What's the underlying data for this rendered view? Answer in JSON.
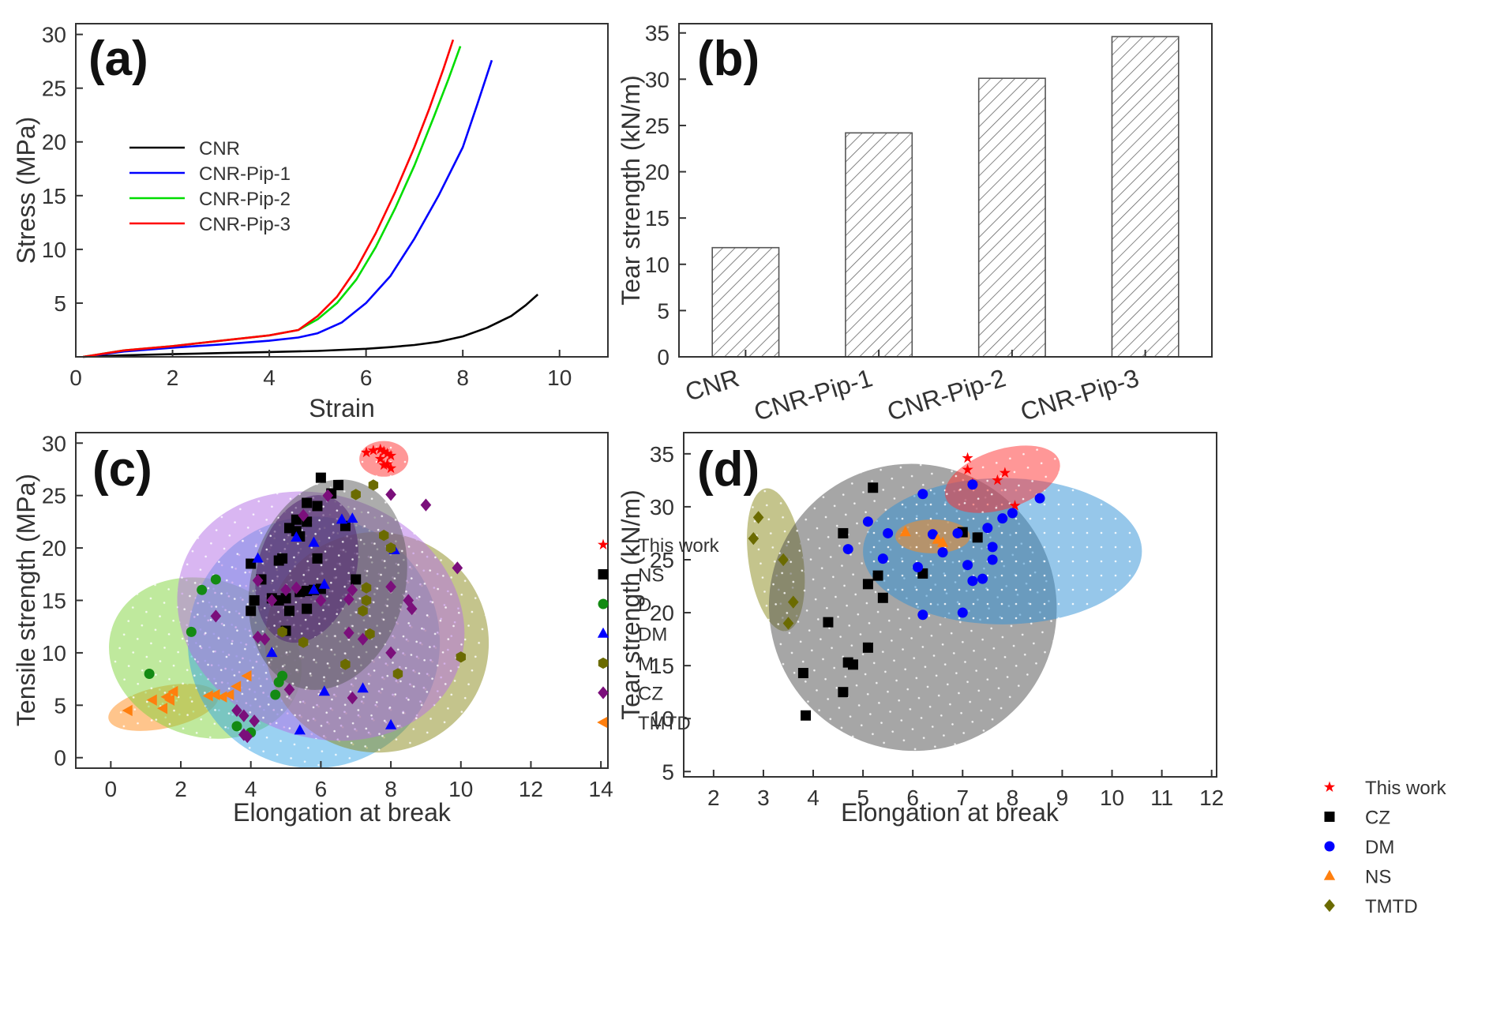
{
  "chart_data": [
    {
      "panel": "(a)",
      "type": "line",
      "xlabel": "Strain",
      "ylabel": "Stress (MPa)",
      "xlim": [
        0,
        11
      ],
      "ylim": [
        0,
        31
      ],
      "xticks": [
        0,
        2,
        4,
        6,
        8,
        10
      ],
      "yticks": [
        5,
        10,
        15,
        20,
        25,
        30
      ],
      "legend_position": "top-left",
      "series": [
        {
          "name": "CNR",
          "color": "#000000",
          "x": [
            0.15,
            1,
            2,
            3,
            4,
            5,
            6,
            6.5,
            7,
            7.5,
            8,
            8.5,
            9,
            9.3,
            9.55
          ],
          "y": [
            0,
            0.15,
            0.25,
            0.35,
            0.45,
            0.55,
            0.75,
            0.9,
            1.1,
            1.4,
            1.9,
            2.7,
            3.8,
            4.8,
            5.8
          ]
        },
        {
          "name": "CNR-Pip-1",
          "color": "#0000ff",
          "x": [
            0.15,
            1,
            2,
            3,
            4,
            4.6,
            5,
            5.5,
            6,
            6.5,
            7,
            7.5,
            8,
            8.3,
            8.6
          ],
          "y": [
            0,
            0.5,
            0.85,
            1.15,
            1.5,
            1.8,
            2.2,
            3.2,
            5.0,
            7.5,
            11,
            15,
            19.5,
            23.5,
            27.6
          ]
        },
        {
          "name": "CNR-Pip-2",
          "color": "#00dd00",
          "x": [
            0.15,
            1,
            2,
            3,
            4,
            4.6,
            5,
            5.4,
            5.8,
            6.2,
            6.6,
            7,
            7.4,
            7.7,
            7.95
          ],
          "y": [
            0,
            0.6,
            1.0,
            1.5,
            2.0,
            2.5,
            3.5,
            5.0,
            7.2,
            10.2,
            13.8,
            17.8,
            22.3,
            25.8,
            28.9
          ]
        },
        {
          "name": "CNR-Pip-3",
          "color": "#ff0000",
          "x": [
            0.15,
            1,
            2,
            3,
            4,
            4.6,
            5,
            5.4,
            5.8,
            6.2,
            6.6,
            7,
            7.3,
            7.6,
            7.8
          ],
          "y": [
            0,
            0.6,
            1.0,
            1.5,
            2.0,
            2.5,
            3.8,
            5.6,
            8.2,
            11.5,
            15.3,
            19.5,
            23.0,
            26.8,
            29.5
          ]
        }
      ]
    },
    {
      "panel": "(b)",
      "type": "bar",
      "xlabel": "",
      "ylabel": "Tear strength (kN/m)",
      "ylim": [
        0,
        36
      ],
      "yticks": [
        0,
        5,
        10,
        15,
        20,
        25,
        30,
        35
      ],
      "categories": [
        "CNR",
        "CNR-Pip-1",
        "CNR-Pip-2",
        "CNR-Pip-3"
      ],
      "values": [
        11.8,
        24.2,
        30.1,
        34.6
      ]
    },
    {
      "panel": "(c)",
      "type": "scatter",
      "xlabel": "Elongation at break",
      "ylabel": "Tensile strength (MPa)",
      "xlim": [
        -1,
        14.2
      ],
      "ylim": [
        -1,
        31
      ],
      "xticks": [
        0,
        2,
        4,
        6,
        8,
        10,
        12,
        14
      ],
      "yticks": [
        0,
        5,
        10,
        15,
        20,
        25,
        30
      ],
      "legend_position": "top-right",
      "regions": [
        {
          "series": "TMTD",
          "color": "#ff8c1a",
          "cx": 1.5,
          "cy": 4.8,
          "rx": 1.6,
          "ry": 2.0,
          "angle": -12
        },
        {
          "series": "D",
          "color": "#7fd33c",
          "cx": 2.7,
          "cy": 9.5,
          "rx": 2.8,
          "ry": 7.5,
          "angle": 18
        },
        {
          "series": "DM",
          "color": "#36a3e6",
          "cx": 5.8,
          "cy": 11.0,
          "rx": 3.6,
          "ry": 12.0,
          "angle": 14
        },
        {
          "series": "M",
          "color": "#8a8a1a",
          "cx": 7.6,
          "cy": 11.0,
          "rx": 3.2,
          "ry": 10.5,
          "angle": 14
        },
        {
          "series": "CZ",
          "color": "#b46de6",
          "cx": 6.0,
          "cy": 13.5,
          "rx": 4.2,
          "ry": 11.5,
          "angle": 22
        },
        {
          "series": "NS",
          "color": "#5a5a5a",
          "cx": 6.2,
          "cy": 16.5,
          "rx": 2.2,
          "ry": 10.2,
          "angle": 15
        },
        {
          "series": "NS-CZ overlap",
          "color": "#4b1e6e",
          "cx": 5.6,
          "cy": 18.0,
          "rx": 1.4,
          "ry": 7.2,
          "angle": 16
        },
        {
          "series": "This work",
          "color": "#ff3030",
          "cx": 7.8,
          "cy": 28.5,
          "rx": 0.7,
          "ry": 1.7,
          "angle": 0
        }
      ],
      "series": [
        {
          "name": "This work",
          "marker": "star",
          "color": "#ff0000",
          "x": [
            7.3,
            7.5,
            7.7,
            7.8,
            7.9,
            8.0,
            7.7,
            7.9,
            8.0,
            7.8
          ],
          "y": [
            29.1,
            29.3,
            29.4,
            29.2,
            29.0,
            28.8,
            28.5,
            28.0,
            27.6,
            27.9
          ]
        },
        {
          "name": "NS",
          "marker": "square",
          "color": "#000000",
          "x": [
            6.0,
            6.3,
            6.5,
            5.9,
            6.7,
            5.6,
            5.3,
            5.1,
            5.4,
            4.9,
            5.6,
            4.8,
            4.0,
            4.3,
            4.8,
            5.0,
            5.1,
            5.4,
            5.6,
            5.8,
            6.0,
            4.1,
            4.0,
            4.6,
            5.6,
            5.0,
            7.0,
            5.3,
            5.9
          ],
          "y": [
            26.7,
            25.2,
            26.0,
            24.0,
            22.1,
            22.5,
            21.6,
            21.9,
            21.1,
            19.0,
            24.3,
            18.8,
            18.5,
            17.0,
            15.0,
            12.1,
            14.0,
            15.8,
            15.9,
            16.0,
            16.1,
            15.0,
            14.0,
            15.2,
            14.2,
            15.2,
            17.0,
            22.7,
            19.0
          ]
        },
        {
          "name": "D",
          "marker": "circle",
          "color": "#138a13",
          "x": [
            3.0,
            2.6,
            2.3,
            1.1,
            4.9,
            4.8,
            4.7,
            3.6,
            4.0
          ],
          "y": [
            17.0,
            16.0,
            12.0,
            8.0,
            7.8,
            7.2,
            6.0,
            3.0,
            2.4
          ]
        },
        {
          "name": "DM",
          "marker": "triangle-up",
          "color": "#0000ff",
          "x": [
            4.2,
            5.3,
            5.8,
            6.1,
            6.6,
            6.9,
            8.1,
            5.8,
            4.6,
            6.1,
            7.2,
            5.4,
            8.0
          ],
          "y": [
            19.0,
            21.0,
            20.5,
            16.5,
            22.7,
            22.8,
            19.8,
            16.0,
            10.0,
            6.3,
            6.6,
            2.6,
            3.1
          ]
        },
        {
          "name": "M",
          "marker": "hexagon",
          "color": "#6b6b00",
          "x": [
            7.0,
            7.5,
            7.8,
            8.0,
            7.2,
            7.3,
            7.4,
            7.3,
            6.7,
            8.2,
            10.0,
            5.5,
            4.9
          ],
          "y": [
            25.1,
            26.0,
            21.2,
            20.0,
            14.0,
            16.2,
            11.8,
            15.0,
            8.9,
            8.0,
            9.6,
            11.0,
            12.0
          ]
        },
        {
          "name": "CZ",
          "marker": "diamond",
          "color": "#7b0f7b",
          "x": [
            6.2,
            5.5,
            8.0,
            9.0,
            4.2,
            4.6,
            5.0,
            5.3,
            6.9,
            6.8,
            6.0,
            8.0,
            8.6,
            8.5,
            9.9,
            6.8,
            7.2,
            8.0,
            6.9,
            3.0,
            4.2,
            4.4,
            3.8,
            4.1,
            3.6,
            3.9,
            3.8,
            5.1
          ],
          "y": [
            25.0,
            23.1,
            25.1,
            24.1,
            16.9,
            15.0,
            16.0,
            16.2,
            16.0,
            15.1,
            15.0,
            16.3,
            14.2,
            15.0,
            18.1,
            11.9,
            11.3,
            10.0,
            5.7,
            13.5,
            11.5,
            11.3,
            4.0,
            3.5,
            4.5,
            2.0,
            2.2,
            6.5
          ]
        },
        {
          "name": "TMTD",
          "marker": "triangle-left",
          "color": "#ff7f0e",
          "x": [
            0.5,
            1.2,
            1.5,
            1.6,
            1.7,
            1.8,
            2.8,
            3.0,
            3.2,
            3.4,
            3.6,
            3.9
          ],
          "y": [
            4.5,
            5.5,
            4.7,
            5.8,
            5.5,
            6.3,
            5.9,
            6.0,
            5.8,
            6.0,
            6.8,
            7.8
          ]
        }
      ]
    },
    {
      "panel": "(d)",
      "type": "scatter",
      "xlabel": "Elongation at break",
      "ylabel": "Tear strength (kN/m)",
      "xlim": [
        1.4,
        12.1
      ],
      "ylim": [
        4.5,
        37
      ],
      "xticks": [
        2,
        3,
        4,
        5,
        6,
        7,
        8,
        9,
        10,
        11,
        12
      ],
      "yticks": [
        5,
        10,
        15,
        20,
        25,
        30,
        35
      ],
      "legend_position": "bottom-right",
      "regions": [
        {
          "series": "TMTD",
          "color": "#8a8a1a",
          "cx": 3.25,
          "cy": 25.0,
          "rx": 0.55,
          "ry": 6.8,
          "angle": -8
        },
        {
          "series": "CZ",
          "color": "#4d4d4d",
          "cx": 6.0,
          "cy": 20.5,
          "rx": 2.9,
          "ry": 13.5,
          "angle": 38
        },
        {
          "series": "DM",
          "color": "#2d8fd6",
          "cx": 7.8,
          "cy": 25.8,
          "rx": 2.8,
          "ry": 6.9,
          "angle": 0
        },
        {
          "series": "NS",
          "color": "#ff8c1a",
          "cx": 6.4,
          "cy": 27.2,
          "rx": 0.75,
          "ry": 1.6,
          "angle": 0
        },
        {
          "series": "This work",
          "color": "#ff3030",
          "cx": 7.8,
          "cy": 32.6,
          "rx": 1.2,
          "ry": 2.8,
          "angle": -18
        }
      ],
      "series": [
        {
          "name": "This work",
          "marker": "star",
          "color": "#ff0000",
          "x": [
            7.1,
            7.1,
            7.2,
            7.7,
            7.85,
            8.05
          ],
          "y": [
            34.6,
            33.5,
            32.2,
            32.5,
            33.2,
            30.1
          ]
        },
        {
          "name": "CZ",
          "marker": "square",
          "color": "#000000",
          "x": [
            5.2,
            4.6,
            6.2,
            7.0,
            7.3,
            5.1,
            5.3,
            5.4,
            4.3,
            5.1,
            4.7,
            4.8,
            3.8,
            4.6,
            3.85
          ],
          "y": [
            31.8,
            27.5,
            23.7,
            27.6,
            27.1,
            22.7,
            23.5,
            21.4,
            19.1,
            16.7,
            15.3,
            15.1,
            14.3,
            12.5,
            10.3
          ]
        },
        {
          "name": "DM",
          "marker": "circle",
          "color": "#0000ff",
          "x": [
            6.2,
            7.2,
            8.55,
            8.0,
            7.8,
            5.1,
            5.5,
            6.4,
            6.9,
            4.7,
            5.4,
            6.6,
            6.1,
            7.1,
            7.5,
            7.6,
            7.6,
            7.2,
            7.4,
            6.2,
            7.0
          ],
          "y": [
            31.2,
            32.1,
            30.8,
            29.4,
            28.9,
            28.6,
            27.5,
            27.4,
            27.5,
            26.0,
            25.1,
            25.7,
            24.3,
            24.5,
            28.0,
            26.2,
            25.0,
            23.0,
            23.2,
            19.8,
            20.0
          ]
        },
        {
          "name": "NS",
          "marker": "triangle-up",
          "color": "#ff7f0e",
          "x": [
            5.85,
            6.5,
            6.6
          ],
          "y": [
            27.6,
            26.9,
            26.6
          ]
        },
        {
          "name": "TMTD",
          "marker": "diamond",
          "color": "#6b6b00",
          "x": [
            2.9,
            2.8,
            3.4,
            3.6,
            3.5
          ],
          "y": [
            29.0,
            27.0,
            25.0,
            21.0,
            19.0
          ]
        }
      ]
    }
  ]
}
